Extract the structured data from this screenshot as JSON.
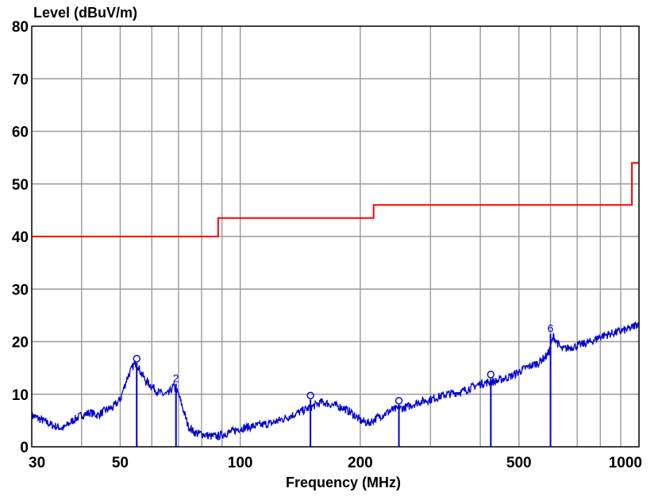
{
  "chart_data": {
    "type": "line",
    "title": "",
    "ylabel": "Level (dBuV/m)",
    "xlabel": "Frequency (MHz)",
    "x_scale": "log",
    "xlim": [
      30,
      1000
    ],
    "ylim": [
      0,
      80
    ],
    "grid": true,
    "x_ticks": [
      30,
      50,
      100,
      200,
      500,
      1000
    ],
    "x_tick_labels": [
      "30",
      "50",
      "100",
      "200",
      "500",
      "1000"
    ],
    "x_grid": [
      30,
      40,
      50,
      60,
      70,
      80,
      90,
      100,
      200,
      300,
      400,
      500,
      600,
      700,
      800,
      900,
      1000
    ],
    "y_ticks": [
      0,
      10,
      20,
      30,
      40,
      50,
      60,
      70,
      80
    ],
    "y_tick_labels": [
      "0",
      "10",
      "20",
      "30",
      "40",
      "50",
      "60",
      "70",
      "80"
    ],
    "colors": {
      "limit": "#ff0000",
      "measurement": "#0000cc",
      "grid": "#9a9a9a"
    },
    "series": [
      {
        "x": [
          30,
          88,
          88,
          216,
          216,
          960,
          960,
          1000
        ],
        "y": [
          40,
          40,
          43.5,
          43.5,
          46,
          46,
          54,
          54
        ]
      },
      {
        "x": [
          30,
          32,
          34,
          36,
          38,
          40,
          42,
          44,
          46,
          48,
          50,
          52,
          54,
          55,
          56,
          58,
          60,
          62,
          64,
          66,
          68,
          70,
          72,
          74,
          76,
          78,
          80,
          84,
          88,
          92,
          96,
          100,
          110,
          120,
          130,
          140,
          150,
          160,
          170,
          180,
          190,
          200,
          210,
          220,
          240,
          260,
          280,
          300,
          330,
          360,
          400,
          440,
          480,
          520,
          560,
          590,
          600,
          610,
          640,
          680,
          720,
          760,
          800,
          850,
          900,
          950,
          1000
        ],
        "y": [
          6,
          5,
          4,
          3.5,
          5,
          6,
          6.5,
          6,
          7,
          7.5,
          9,
          13,
          15.5,
          16,
          14.5,
          12.5,
          11.5,
          10.5,
          10,
          10,
          11.5,
          10,
          7,
          4,
          3,
          2.5,
          2.5,
          2,
          2,
          2.5,
          3,
          3.5,
          4,
          4.5,
          5.5,
          6.5,
          7.5,
          8.5,
          8,
          7.5,
          6.5,
          5,
          4.5,
          5.5,
          7,
          7.5,
          8.5,
          9,
          10,
          10.5,
          12,
          12.5,
          13.5,
          15,
          16,
          17.5,
          19,
          21,
          18.5,
          19,
          19.5,
          20,
          21,
          21.5,
          22,
          22.5,
          23.5
        ]
      }
    ],
    "markers": [
      {
        "label": "",
        "x": 55,
        "y": 16
      },
      {
        "label": "2",
        "x": 69,
        "y": 12
      },
      {
        "label": "",
        "x": 150,
        "y": 9
      },
      {
        "label": "",
        "x": 250,
        "y": 8
      },
      {
        "label": "",
        "x": 425,
        "y": 13
      },
      {
        "label": "6",
        "x": 600,
        "y": 21.5
      }
    ]
  }
}
